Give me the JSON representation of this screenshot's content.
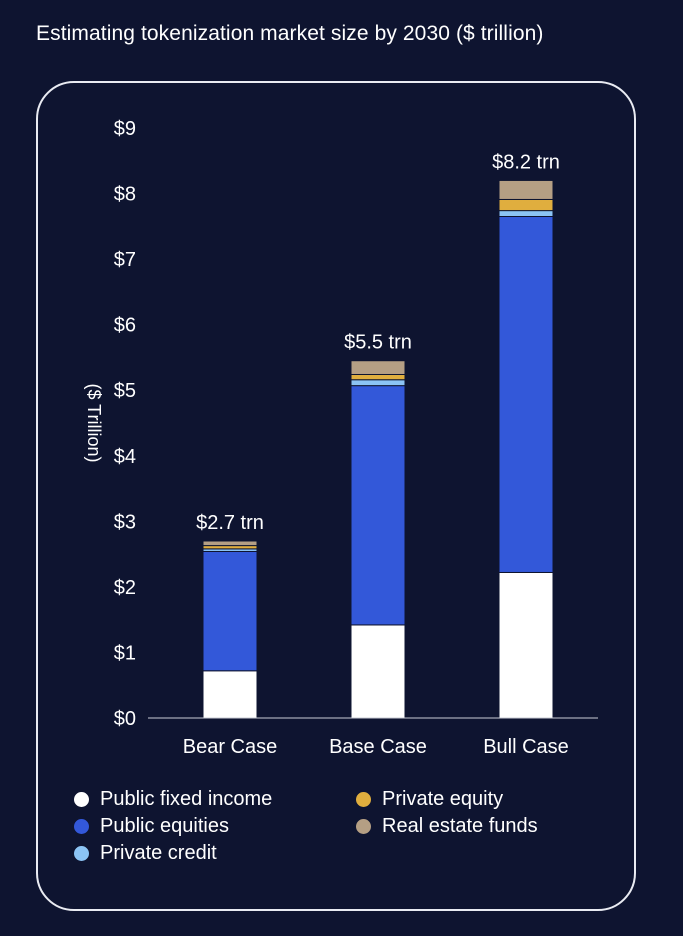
{
  "title": "Estimating tokenization market size by 2030 ($ trillion)",
  "colors": {
    "background": "#0e1430",
    "public_fixed_income": "#ffffff",
    "public_equities": "#3358d9",
    "private_credit": "#8cc4f5",
    "private_equity": "#e0ae3e",
    "real_estate_funds": "#b59f84"
  },
  "chart_data": {
    "type": "bar",
    "stacked": true,
    "categories": [
      "Bear Case",
      "Base Case",
      "Bull Case"
    ],
    "series": [
      {
        "name": "Public fixed income",
        "values": [
          0.72,
          1.42,
          2.22
        ]
      },
      {
        "name": "Public equities",
        "values": [
          1.82,
          3.65,
          5.43
        ]
      },
      {
        "name": "Private credit",
        "values": [
          0.04,
          0.09,
          0.09
        ]
      },
      {
        "name": "Private equity",
        "values": [
          0.05,
          0.08,
          0.17
        ]
      },
      {
        "name": "Real estate funds",
        "values": [
          0.07,
          0.21,
          0.29
        ]
      }
    ],
    "totals_labels": [
      "$2.7 trn",
      "$5.5 trn",
      "$8.2 trn"
    ],
    "xlabel": "",
    "ylabel": "($ Trillion)",
    "ylim": [
      0,
      9
    ],
    "yticks": [
      0,
      1,
      2,
      3,
      4,
      5,
      6,
      7,
      8,
      9
    ],
    "ytick_labels": [
      "$0",
      "$1",
      "$2",
      "$3",
      "$4",
      "$5",
      "$6",
      "$7",
      "$8",
      "$9"
    ],
    "grid": false,
    "legend_position": "bottom"
  },
  "legend": {
    "items": [
      {
        "label": "Public fixed income",
        "color_key": "public_fixed_income"
      },
      {
        "label": "Public equities",
        "color_key": "public_equities"
      },
      {
        "label": "Private credit",
        "color_key": "private_credit"
      },
      {
        "label": "Private equity",
        "color_key": "private_equity"
      },
      {
        "label": "Real estate funds",
        "color_key": "real_estate_funds"
      }
    ]
  }
}
